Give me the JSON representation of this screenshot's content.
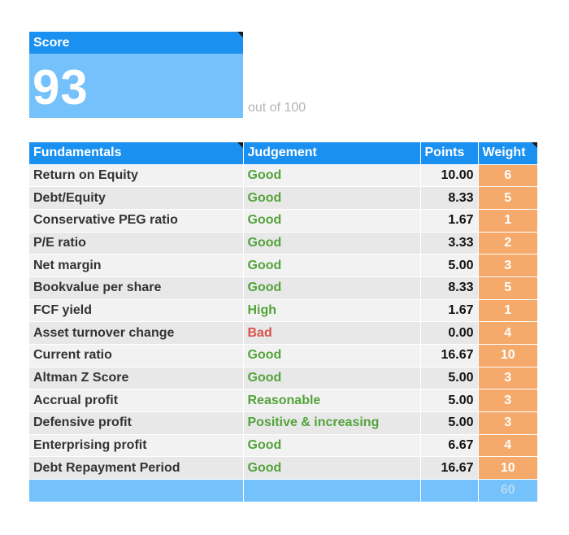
{
  "score": {
    "label": "Score",
    "value": "93",
    "suffix": "out of 100"
  },
  "table": {
    "headers": {
      "fundamentals": "Fundamentals",
      "judgement": "Judgement",
      "points": "Points",
      "weight": "Weight"
    },
    "rows": [
      {
        "name": "Return on Equity",
        "judgement": "Good",
        "points": "10.00",
        "weight": "6",
        "status": "positive"
      },
      {
        "name": "Debt/Equity",
        "judgement": "Good",
        "points": "8.33",
        "weight": "5",
        "status": "positive"
      },
      {
        "name": "Conservative PEG ratio",
        "judgement": "Good",
        "points": "1.67",
        "weight": "1",
        "status": "positive"
      },
      {
        "name": "P/E ratio",
        "judgement": "Good",
        "points": "3.33",
        "weight": "2",
        "status": "positive"
      },
      {
        "name": "Net margin",
        "judgement": "Good",
        "points": "5.00",
        "weight": "3",
        "status": "positive"
      },
      {
        "name": "Bookvalue per share",
        "judgement": "Good",
        "points": "8.33",
        "weight": "5",
        "status": "positive"
      },
      {
        "name": "FCF yield",
        "judgement": "High",
        "points": "1.67",
        "weight": "1",
        "status": "positive"
      },
      {
        "name": "Asset turnover change",
        "judgement": "Bad",
        "points": "0.00",
        "weight": "4",
        "status": "negative"
      },
      {
        "name": "Current ratio",
        "judgement": "Good",
        "points": "16.67",
        "weight": "10",
        "status": "positive"
      },
      {
        "name": "Altman Z Score",
        "judgement": "Good",
        "points": "5.00",
        "weight": "3",
        "status": "positive"
      },
      {
        "name": "Accrual profit",
        "judgement": "Reasonable",
        "points": "5.00",
        "weight": "3",
        "status": "positive"
      },
      {
        "name": "Defensive profit",
        "judgement": "Positive & increasing",
        "points": "5.00",
        "weight": "3",
        "status": "positive"
      },
      {
        "name": "Enterprising profit",
        "judgement": "Good",
        "points": "6.67",
        "weight": "4",
        "status": "positive"
      },
      {
        "name": "Debt Repayment Period",
        "judgement": "Good",
        "points": "16.67",
        "weight": "10",
        "status": "positive"
      }
    ],
    "total_weight": "60"
  },
  "colors": {
    "header_blue": "#1a90f0",
    "light_blue": "#74c1fb",
    "weight_orange": "#f5aa6b",
    "good_green": "#53a33b",
    "bad_red": "#d9534f"
  }
}
